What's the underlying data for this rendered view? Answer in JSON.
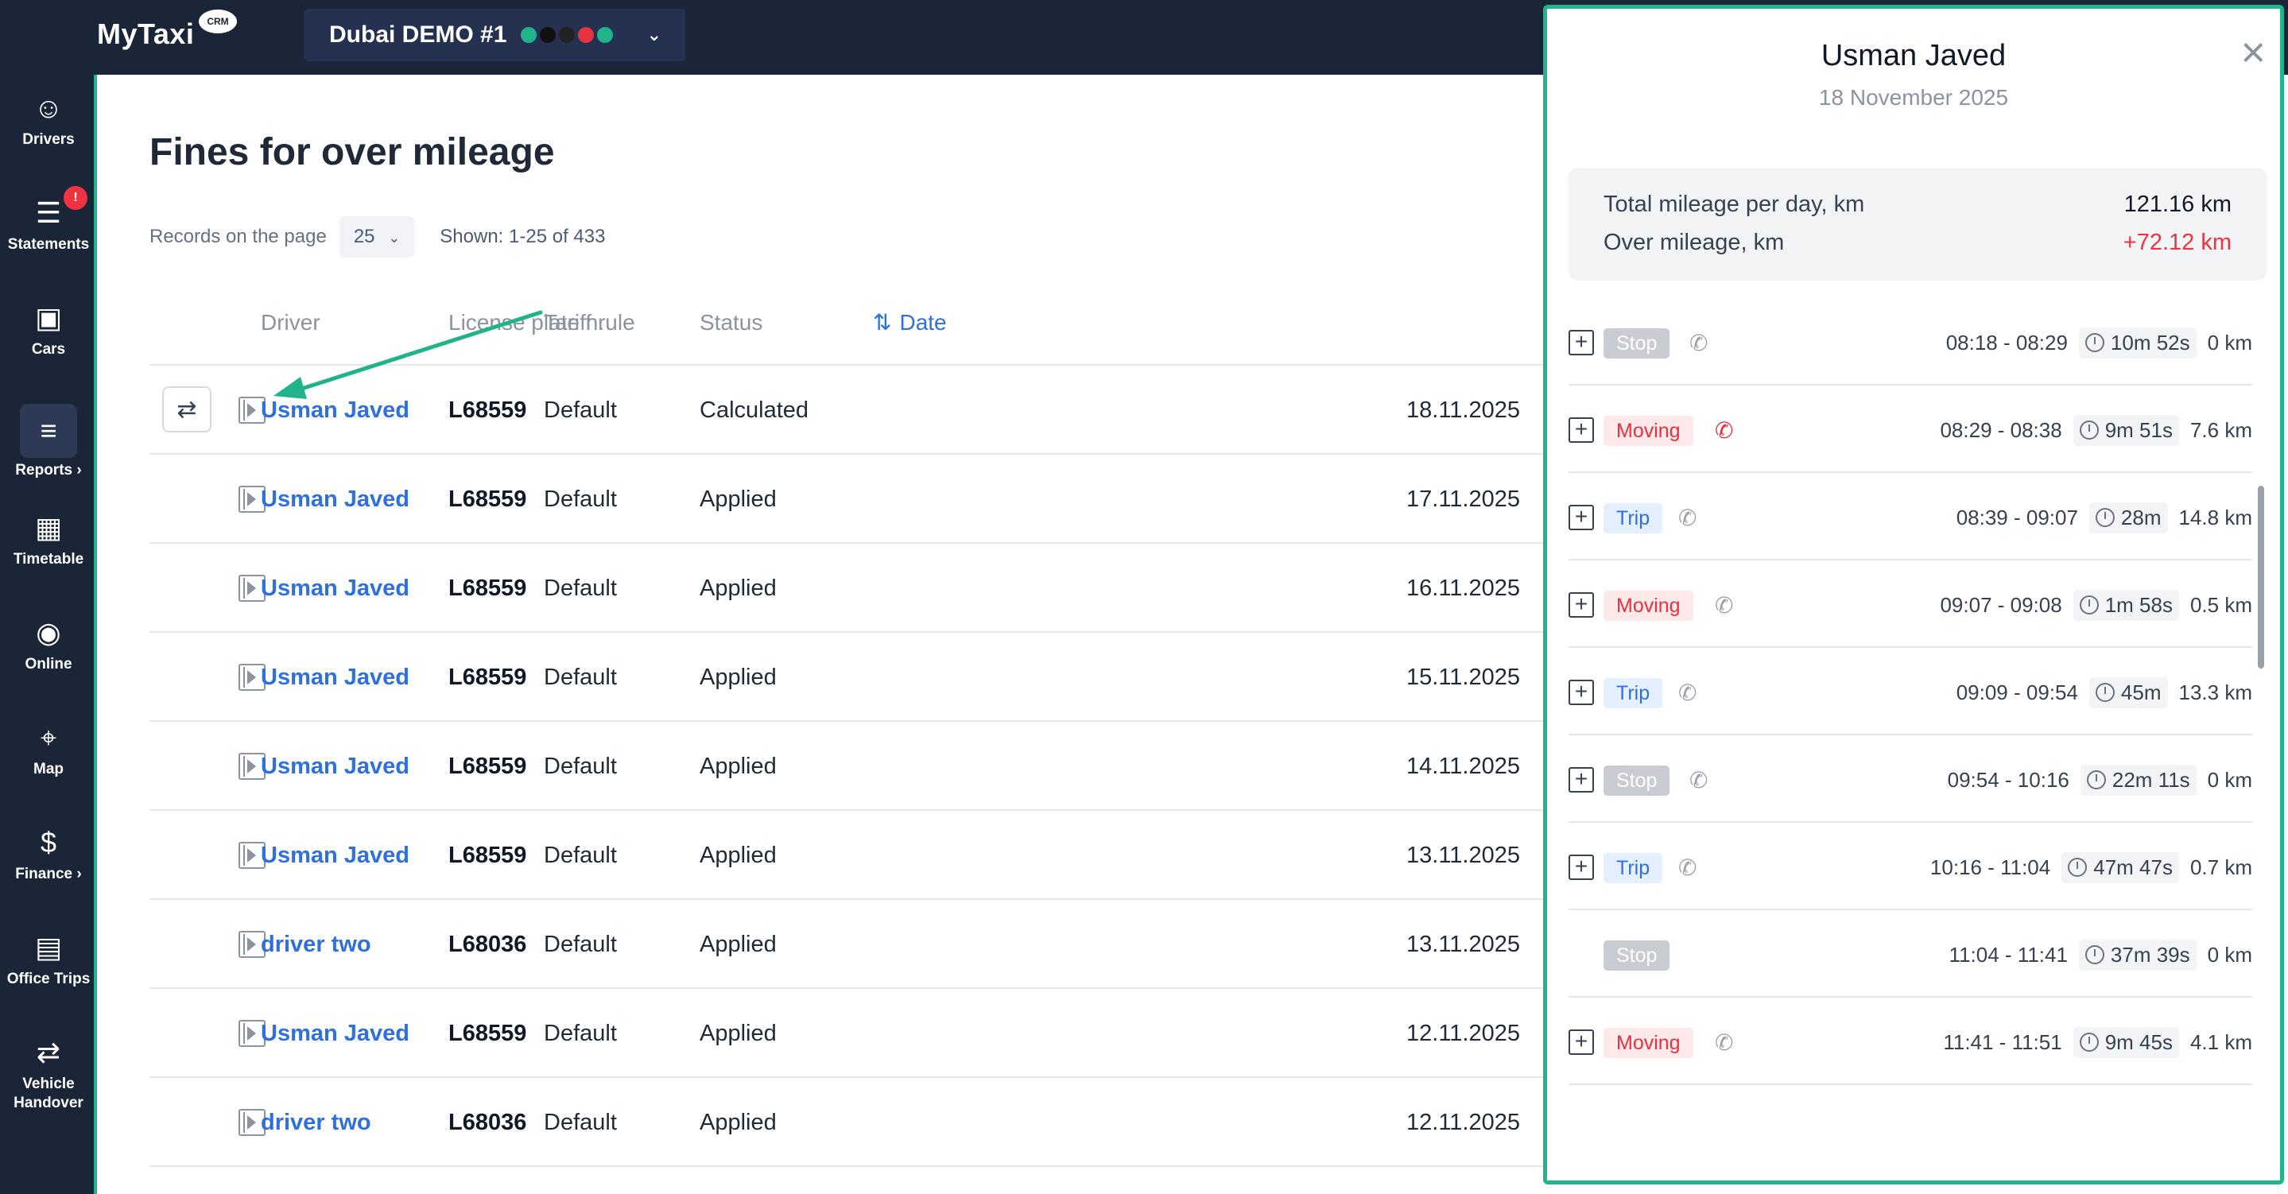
{
  "topbar": {
    "logo": "MyTaxi",
    "logo_badge": "CRM",
    "company": "Dubai DEMO #1",
    "company_dot_colors": [
      "#21b38b",
      "#111111",
      "#222222",
      "#e6333f",
      "#21b38b"
    ]
  },
  "sidebar": {
    "items": [
      {
        "label": "Drivers",
        "icon": "user-icon"
      },
      {
        "label": "Statements",
        "icon": "clipboard-chart-icon",
        "badge": "!"
      },
      {
        "label": "Cars",
        "icon": "car-icon"
      },
      {
        "label": "Reports ›",
        "icon": "report-icon",
        "active": true
      },
      {
        "label": "Timetable",
        "icon": "calendar-icon"
      },
      {
        "label": "Online",
        "icon": "broadcast-icon"
      },
      {
        "label": "Map",
        "icon": "map-icon"
      },
      {
        "label": "Finance ›",
        "icon": "finance-icon"
      },
      {
        "label": "Office Trips",
        "icon": "briefcase-icon"
      },
      {
        "label": "Vehicle Handover",
        "icon": "handover-icon"
      }
    ]
  },
  "main": {
    "title": "Fines for over mileage",
    "records_label": "Records on the page",
    "records_value": "25",
    "shown": "Shown: 1-25 of 433",
    "columns": {
      "driver": "Driver",
      "plate": "License plate n.",
      "tariff": "Tariff rule",
      "status": "Status",
      "date": "Date",
      "date_icon": "sort-icon"
    },
    "rows": [
      {
        "driver": "Usman Javed",
        "plate": "L68559",
        "tariff": "Default",
        "status": "Calculated",
        "date": "18.11.2025"
      },
      {
        "driver": "Usman Javed",
        "plate": "L68559",
        "tariff": "Default",
        "status": "Applied",
        "date": "17.11.2025"
      },
      {
        "driver": "Usman Javed",
        "plate": "L68559",
        "tariff": "Default",
        "status": "Applied",
        "date": "16.11.2025"
      },
      {
        "driver": "Usman Javed",
        "plate": "L68559",
        "tariff": "Default",
        "status": "Applied",
        "date": "15.11.2025"
      },
      {
        "driver": "Usman Javed",
        "plate": "L68559",
        "tariff": "Default",
        "status": "Applied",
        "date": "14.11.2025"
      },
      {
        "driver": "Usman Javed",
        "plate": "L68559",
        "tariff": "Default",
        "status": "Applied",
        "date": "13.11.2025"
      },
      {
        "driver": "driver two",
        "plate": "L68036",
        "tariff": "Default",
        "status": "Applied",
        "date": "13.11.2025"
      },
      {
        "driver": "Usman Javed",
        "plate": "L68559",
        "tariff": "Default",
        "status": "Applied",
        "date": "12.11.2025"
      },
      {
        "driver": "driver two",
        "plate": "L68036",
        "tariff": "Default",
        "status": "Applied",
        "date": "12.11.2025"
      }
    ]
  },
  "panel": {
    "title": "Usman Javed",
    "date": "18 November 2025",
    "total_label": "Total mileage per day, km",
    "total_value": "121.16 km",
    "over_label": "Over mileage, km",
    "over_value": "+72.12 km",
    "segments": [
      {
        "type": "Stop",
        "kind": "stop",
        "time": "08:18 - 08:29",
        "duration": "10m 52s",
        "km": "0 km",
        "expandable": true,
        "phone_red": false
      },
      {
        "type": "Moving",
        "kind": "moving",
        "time": "08:29 - 08:38",
        "duration": "9m 51s",
        "km": "7.6 km",
        "expandable": true,
        "phone_red": true
      },
      {
        "type": "Trip",
        "kind": "trip",
        "time": "08:39 - 09:07",
        "duration": "28m",
        "km": "14.8 km",
        "expandable": true,
        "phone_red": false
      },
      {
        "type": "Moving",
        "kind": "moving",
        "time": "09:07 - 09:08",
        "duration": "1m 58s",
        "km": "0.5 km",
        "expandable": true,
        "phone_red": false
      },
      {
        "type": "Trip",
        "kind": "trip",
        "time": "09:09 - 09:54",
        "duration": "45m",
        "km": "13.3 km",
        "expandable": true,
        "phone_red": false
      },
      {
        "type": "Stop",
        "kind": "stop",
        "time": "09:54 - 10:16",
        "duration": "22m 11s",
        "km": "0 km",
        "expandable": true,
        "phone_red": false
      },
      {
        "type": "Trip",
        "kind": "trip",
        "time": "10:16 - 11:04",
        "duration": "47m 47s",
        "km": "0.7 km",
        "expandable": true,
        "phone_red": false
      },
      {
        "type": "Stop",
        "kind": "stop",
        "time": "11:04 - 11:41",
        "duration": "37m 39s",
        "km": "0 km",
        "expandable": false,
        "phone_red": false
      },
      {
        "type": "Moving",
        "kind": "moving",
        "time": "11:41 - 11:51",
        "duration": "9m 45s",
        "km": "4.1 km",
        "expandable": true,
        "phone_red": false
      }
    ]
  },
  "colors": {
    "accent": "#21b38b",
    "link": "#2f6fde",
    "danger": "#e6333f",
    "nav_bg": "#1b2538"
  }
}
